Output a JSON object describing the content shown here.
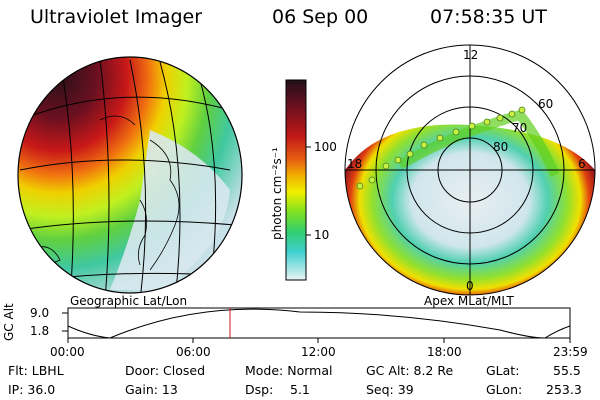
{
  "header": {
    "title": "Ultraviolet Imager",
    "date": "06 Sep 00",
    "time": "07:58:35 UT"
  },
  "colorbar": {
    "label": "photon cm⁻²s⁻¹",
    "ticks": [
      "100",
      "10"
    ]
  },
  "left_map": {
    "caption": "Geographic Lat/Lon"
  },
  "right_map": {
    "caption": "Apex MLat/MLT",
    "mlt_labels": [
      "12",
      "18",
      "6",
      "0"
    ],
    "lat_labels": [
      "60",
      "70",
      "80"
    ]
  },
  "altitude_plot": {
    "ylabel": "GC Alt",
    "yticks": [
      "9.0",
      "1.8"
    ],
    "xticks": [
      "00:00",
      "06:00",
      "12:00",
      "18:00",
      "23:59"
    ],
    "current_time_fraction": 0.334
  },
  "info": {
    "flt": "Flt: LBHL",
    "ip": "IP: 36.0",
    "door": "Door: Closed",
    "gain": "Gain: 13",
    "mode": "Mode: Normal",
    "dsp_label": "Dsp:",
    "dsp_value": "5.1",
    "gc_alt": "GC Alt: 8.2 Re",
    "seq": "Seq: 39",
    "glat_label": "GLat:",
    "glat_value": "55.5",
    "glon_label": "GLon:",
    "glon_value": "253.3"
  },
  "colors": {
    "dark": "#3a1018",
    "red": "#c01818",
    "orange": "#f0a000",
    "yellow": "#f0f000",
    "green": "#60d020",
    "cyan": "#40d0c0",
    "pale": "#d8e8ee",
    "marker": "#c8f040"
  }
}
